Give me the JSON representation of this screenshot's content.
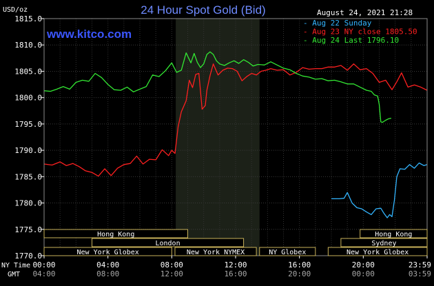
{
  "header": {
    "unit": "USD/oz",
    "title": "24 Hour Spot Gold (Bid)",
    "datetime": "August 24, 2021 21:28",
    "watermark": "www.kitco.com"
  },
  "legend": [
    {
      "marker": "-",
      "text": "Aug 22 Sunday",
      "color": "#33b5ff"
    },
    {
      "marker": "-",
      "text": "Aug 23 NY close 1805.50",
      "color": "#ff2020"
    },
    {
      "marker": "-",
      "text": "Aug 24 Last 1796.10",
      "color": "#33e833"
    }
  ],
  "axis_labels": {
    "ny_time": "NY Time",
    "gmt": "GMT"
  },
  "sessions": [
    {
      "label": "Hong Kong",
      "start_h": 0,
      "end_h": 9
    },
    {
      "label": "London",
      "start_h": 3,
      "end_h": 12.5
    },
    {
      "label": "New York Globex",
      "start_h": 0,
      "end_h": 8
    },
    {
      "label": "New York NYMEX",
      "start_h": 8.2,
      "end_h": 13.3
    },
    {
      "label": "NY Globex",
      "start_h": 13.5,
      "end_h": 17
    },
    {
      "label": "Hong Kong",
      "start_h": 19.8,
      "end_h": 24
    },
    {
      "label": "Sydney",
      "start_h": 18.6,
      "end_h": 24
    },
    {
      "label": "New York Globex",
      "start_h": 17.8,
      "end_h": 24
    }
  ],
  "chart_data": {
    "type": "line",
    "title": "24 Hour Spot Gold (Bid)",
    "ylabel": "USD/oz",
    "ylim": [
      1770,
      1815
    ],
    "xlim": [
      0,
      24
    ],
    "yticks": [
      1770,
      1775,
      1780,
      1785,
      1790,
      1795,
      1800,
      1805,
      1810,
      1815
    ],
    "x_ticks_ny": [
      "00:00",
      "04:00",
      "08:00",
      "12:00",
      "16:00",
      "20:00",
      "23:59"
    ],
    "x_ticks_gmt": [
      "04:00",
      "08:00",
      "12:00",
      "16:00",
      "20:00",
      "00:00",
      "03:59"
    ],
    "nymex_shade": [
      8.25,
      13.5
    ],
    "grid": true,
    "series": [
      {
        "name": "Aug 22 Sunday",
        "color": "#33b5ff",
        "x": [
          18,
          18.5,
          18.8,
          19.0,
          19.3,
          19.6,
          19.9,
          20.2,
          20.5,
          20.8,
          21.1,
          21.3,
          21.5,
          21.65,
          21.8,
          21.95,
          22.1,
          22.3,
          22.6,
          22.9,
          23.2,
          23.5,
          23.8,
          24.0
        ],
        "y": [
          1780.8,
          1780.8,
          1780.9,
          1782.0,
          1780.0,
          1779.1,
          1778.9,
          1778.3,
          1777.8,
          1778.9,
          1779.0,
          1778.0,
          1777.2,
          1777.8,
          1777.4,
          1780.5,
          1785.0,
          1786.5,
          1786.4,
          1787.3,
          1786.6,
          1787.6,
          1787.1,
          1787.3
        ]
      },
      {
        "name": "Aug 23 NY close 1805.50",
        "color": "#ff2020",
        "x": [
          0,
          0.5,
          1.0,
          1.4,
          1.8,
          2.2,
          2.6,
          3.0,
          3.4,
          3.8,
          4.2,
          4.6,
          5.0,
          5.4,
          5.8,
          6.2,
          6.6,
          7.0,
          7.4,
          7.8,
          8.0,
          8.2,
          8.4,
          8.6,
          8.9,
          9.1,
          9.3,
          9.5,
          9.7,
          9.9,
          10.1,
          10.2,
          10.4,
          10.6,
          10.9,
          11.2,
          11.5,
          11.8,
          12.1,
          12.4,
          12.7,
          13.0,
          13.3,
          13.6,
          13.9,
          14.2,
          14.6,
          15.0,
          15.4,
          15.8,
          16.2,
          16.6,
          17.0,
          17.4,
          17.8,
          18.2,
          18.6,
          19.0,
          19.4,
          19.8,
          20.2,
          20.6,
          21.0,
          21.4,
          21.8,
          22.1,
          22.4,
          22.8,
          23.2,
          23.6,
          24.0
        ],
        "y": [
          1787.4,
          1787.2,
          1787.8,
          1787.1,
          1787.5,
          1786.9,
          1786.1,
          1785.8,
          1785.1,
          1786.5,
          1785.2,
          1786.6,
          1787.3,
          1787.5,
          1788.9,
          1787.4,
          1788.3,
          1788.2,
          1790.1,
          1789.0,
          1790.0,
          1789.4,
          1794.5,
          1797.3,
          1799.4,
          1803.3,
          1801.9,
          1804.4,
          1804.6,
          1797.8,
          1798.5,
          1801.4,
          1804.2,
          1806.4,
          1804.3,
          1805.2,
          1805.6,
          1805.5,
          1805.0,
          1803.2,
          1804.0,
          1804.6,
          1804.3,
          1805.0,
          1805.2,
          1805.5,
          1805.2,
          1805.3,
          1804.3,
          1804.8,
          1805.7,
          1805.4,
          1805.5,
          1805.5,
          1805.8,
          1805.8,
          1806.1,
          1805.2,
          1806.4,
          1805.3,
          1805.5,
          1804.6,
          1802.9,
          1803.3,
          1801.5,
          1803.0,
          1804.7,
          1802.0,
          1802.4,
          1802.0,
          1801.4
        ]
      },
      {
        "name": "Aug 24 Last 1796.10",
        "color": "#33e833",
        "x": [
          0,
          0.4,
          0.8,
          1.2,
          1.6,
          2.0,
          2.4,
          2.8,
          3.2,
          3.6,
          4.0,
          4.4,
          4.8,
          5.2,
          5.6,
          6.0,
          6.4,
          6.8,
          7.2,
          7.6,
          8.0,
          8.3,
          8.6,
          8.9,
          9.2,
          9.4,
          9.6,
          9.8,
          10.0,
          10.2,
          10.4,
          10.6,
          10.8,
          11.0,
          11.3,
          11.6,
          11.9,
          12.2,
          12.5,
          12.8,
          13.1,
          13.4,
          13.8,
          14.2,
          14.6,
          15.0,
          15.4,
          15.8,
          16.2,
          16.6,
          17.0,
          17.4,
          17.8,
          18.2,
          18.6,
          19.0,
          19.4,
          19.8,
          20.2,
          20.5,
          20.7,
          20.9,
          21.0,
          21.1,
          21.2,
          21.4,
          21.6,
          21.75
        ],
        "y": [
          1801.3,
          1801.2,
          1801.6,
          1802.1,
          1801.6,
          1802.9,
          1803.3,
          1803.1,
          1804.6,
          1803.8,
          1802.5,
          1801.5,
          1801.4,
          1802.0,
          1801.1,
          1801.6,
          1802.1,
          1804.3,
          1804.0,
          1805.1,
          1806.6,
          1804.8,
          1805.2,
          1808.5,
          1806.6,
          1808.4,
          1806.7,
          1805.7,
          1806.4,
          1808.2,
          1808.7,
          1808.2,
          1807.0,
          1806.4,
          1806.1,
          1806.6,
          1807.0,
          1806.5,
          1807.2,
          1806.7,
          1806.0,
          1806.3,
          1806.2,
          1806.8,
          1806.2,
          1805.6,
          1805.3,
          1804.6,
          1804.1,
          1803.9,
          1803.5,
          1803.6,
          1803.2,
          1803.3,
          1803.0,
          1802.6,
          1802.6,
          1802.0,
          1801.4,
          1801.2,
          1800.5,
          1800.3,
          1798.7,
          1795.4,
          1795.3,
          1795.7,
          1796.0,
          1796.1
        ]
      }
    ]
  }
}
